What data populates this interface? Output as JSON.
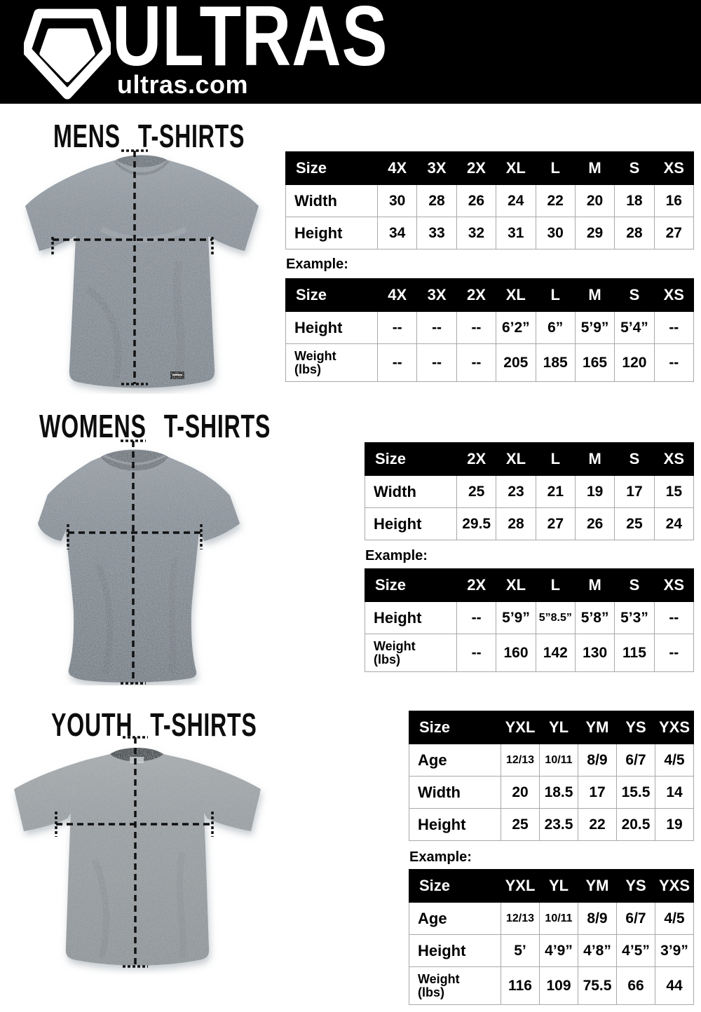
{
  "header": {
    "brand": "ULTRAS",
    "site": "ultras.com",
    "logo_icon": "pentagon-shield-icon"
  },
  "colors": {
    "header_bg": "#000000",
    "table_header_bg": "#000000",
    "table_border": "#a9a9a9",
    "mens_shirt_gray": "#87909a",
    "womens_shirt_gray": "#828c95",
    "youth_shirt_gray": "#9aa0a4",
    "measure_line": "#111111"
  },
  "sections": [
    {
      "id": "mens",
      "title": "MENS T-SHIRTS",
      "example_label": "Example:",
      "size_table": {
        "header": [
          "Size",
          "4X",
          "3X",
          "2X",
          "XL",
          "L",
          "M",
          "S",
          "XS"
        ],
        "rows": [
          {
            "label": "Width",
            "values": [
              "30",
              "28",
              "26",
              "24",
              "22",
              "20",
              "18",
              "16"
            ]
          },
          {
            "label": "Height",
            "values": [
              "34",
              "33",
              "32",
              "31",
              "30",
              "29",
              "28",
              "27"
            ]
          }
        ]
      },
      "example_table": {
        "header": [
          "Size",
          "4X",
          "3X",
          "2X",
          "XL",
          "L",
          "M",
          "S",
          "XS"
        ],
        "rows": [
          {
            "label": "Height",
            "values": [
              "--",
              "--",
              "--",
              "6’2”",
              "6”",
              "5’9”",
              "5’4”",
              "--"
            ]
          },
          {
            "label": "Weight\n(lbs)",
            "values": [
              "--",
              "--",
              "--",
              "205",
              "185",
              "165",
              "120",
              "--"
            ]
          }
        ]
      }
    },
    {
      "id": "womens",
      "title": "WOMENS T-SHIRTS",
      "example_label": "Example:",
      "size_table": {
        "header": [
          "Size",
          "2X",
          "XL",
          "L",
          "M",
          "S",
          "XS"
        ],
        "rows": [
          {
            "label": "Width",
            "values": [
              "25",
              "23",
              "21",
              "19",
              "17",
              "15"
            ]
          },
          {
            "label": "Height",
            "values": [
              "29.5",
              "28",
              "27",
              "26",
              "25",
              "24"
            ]
          }
        ]
      },
      "example_table": {
        "header": [
          "Size",
          "2X",
          "XL",
          "L",
          "M",
          "S",
          "XS"
        ],
        "rows": [
          {
            "label": "Height",
            "values": [
              "--",
              "5’9”",
              "5”8.5”",
              "5’8”",
              "5’3”",
              "--"
            ]
          },
          {
            "label": "Weight\n(lbs)",
            "values": [
              "--",
              "160",
              "142",
              "130",
              "115",
              "--"
            ]
          }
        ]
      }
    },
    {
      "id": "youth",
      "title": "YOUTH T-SHIRTS",
      "example_label": "Example:",
      "size_table": {
        "header": [
          "Size",
          "YXL",
          "YL",
          "YM",
          "YS",
          "YXS"
        ],
        "rows": [
          {
            "label": "Age",
            "values": [
              "12/13",
              "10/11",
              "8/9",
              "6/7",
              "4/5"
            ]
          },
          {
            "label": "Width",
            "values": [
              "20",
              "18.5",
              "17",
              "15.5",
              "14"
            ]
          },
          {
            "label": "Height",
            "values": [
              "25",
              "23.5",
              "22",
              "20.5",
              "19"
            ]
          }
        ]
      },
      "example_table": {
        "header": [
          "Size",
          "YXL",
          "YL",
          "YM",
          "YS",
          "YXS"
        ],
        "rows": [
          {
            "label": "Age",
            "values": [
              "12/13",
              "10/11",
              "8/9",
              "6/7",
              "4/5"
            ]
          },
          {
            "label": "Height",
            "values": [
              "5’",
              "4’9”",
              "4’8”",
              "4’5”",
              "3’9”"
            ]
          },
          {
            "label": "Weight\n(lbs)",
            "values": [
              "116",
              "109",
              "75.5",
              "66",
              "44"
            ]
          }
        ]
      }
    }
  ]
}
